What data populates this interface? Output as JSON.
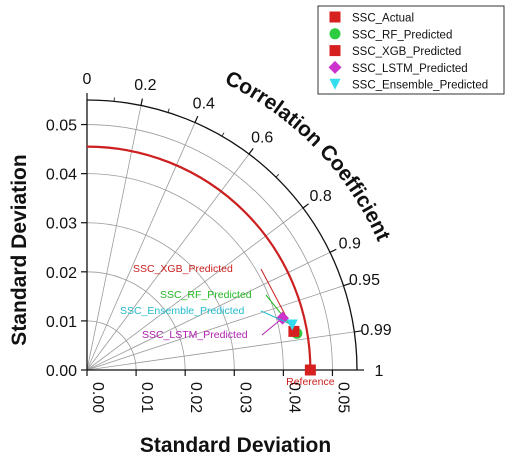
{
  "chart_data": {
    "type": "taylor_diagram",
    "xlabel": "Standard Deviation",
    "ylabel": "Standard Deviation",
    "arc_label": "Correlation Coefficient",
    "std_ticks": [
      "0.00",
      "0.01",
      "0.02",
      "0.03",
      "0.04",
      "0.05"
    ],
    "std_range": [
      0,
      0.055
    ],
    "corr_ticks": [
      {
        "label": "0",
        "value": 0
      },
      {
        "label": "0.2",
        "value": 0.2
      },
      {
        "label": "0.4",
        "value": 0.4
      },
      {
        "label": "0.6",
        "value": 0.6
      },
      {
        "label": "0.8",
        "value": 0.8
      },
      {
        "label": "0.9",
        "value": 0.9
      },
      {
        "label": "0.95",
        "value": 0.95
      },
      {
        "label": "0.99",
        "value": 0.99
      },
      {
        "label": "1",
        "value": 1.0
      }
    ],
    "reference": {
      "label": "Reference",
      "std": 0.0455,
      "color": "#cc1f1f"
    },
    "series": [
      {
        "name": "SSC_Actual",
        "std": 0.0455,
        "corr": 1.0,
        "marker": "square",
        "color": "#d62020",
        "annotation": "Reference",
        "ann_color": "#cc1f1f"
      },
      {
        "name": "SSC_RF_Predicted",
        "std": 0.0432,
        "corr": 0.985,
        "marker": "circle",
        "color": "#2ecc40",
        "annotation": "SSC_RF_Predicted",
        "ann_color": "#22b822"
      },
      {
        "name": "SSC_XGB_Predicted",
        "std": 0.0432,
        "corr": 0.985,
        "marker": "square",
        "color": "#d62020",
        "annotation": "SSC_XGB_Predicted",
        "ann_color": "#cc1f1f"
      },
      {
        "name": "SSC_LSTM_Predicted",
        "std": 0.0428,
        "corr": 0.978,
        "marker": "diamond",
        "color": "#cc33cc",
        "annotation": "SSC_LSTM_Predicted",
        "ann_color": "#b020b0"
      },
      {
        "name": "SSC_Ensemble_Predicted",
        "std": 0.0432,
        "corr": 0.982,
        "marker": "triangle-down",
        "color": "#33ddee",
        "annotation": "SSC_Ensemble_Predicted",
        "ann_color": "#22bbcc"
      }
    ],
    "legend_position": "top-right",
    "grid": true
  }
}
